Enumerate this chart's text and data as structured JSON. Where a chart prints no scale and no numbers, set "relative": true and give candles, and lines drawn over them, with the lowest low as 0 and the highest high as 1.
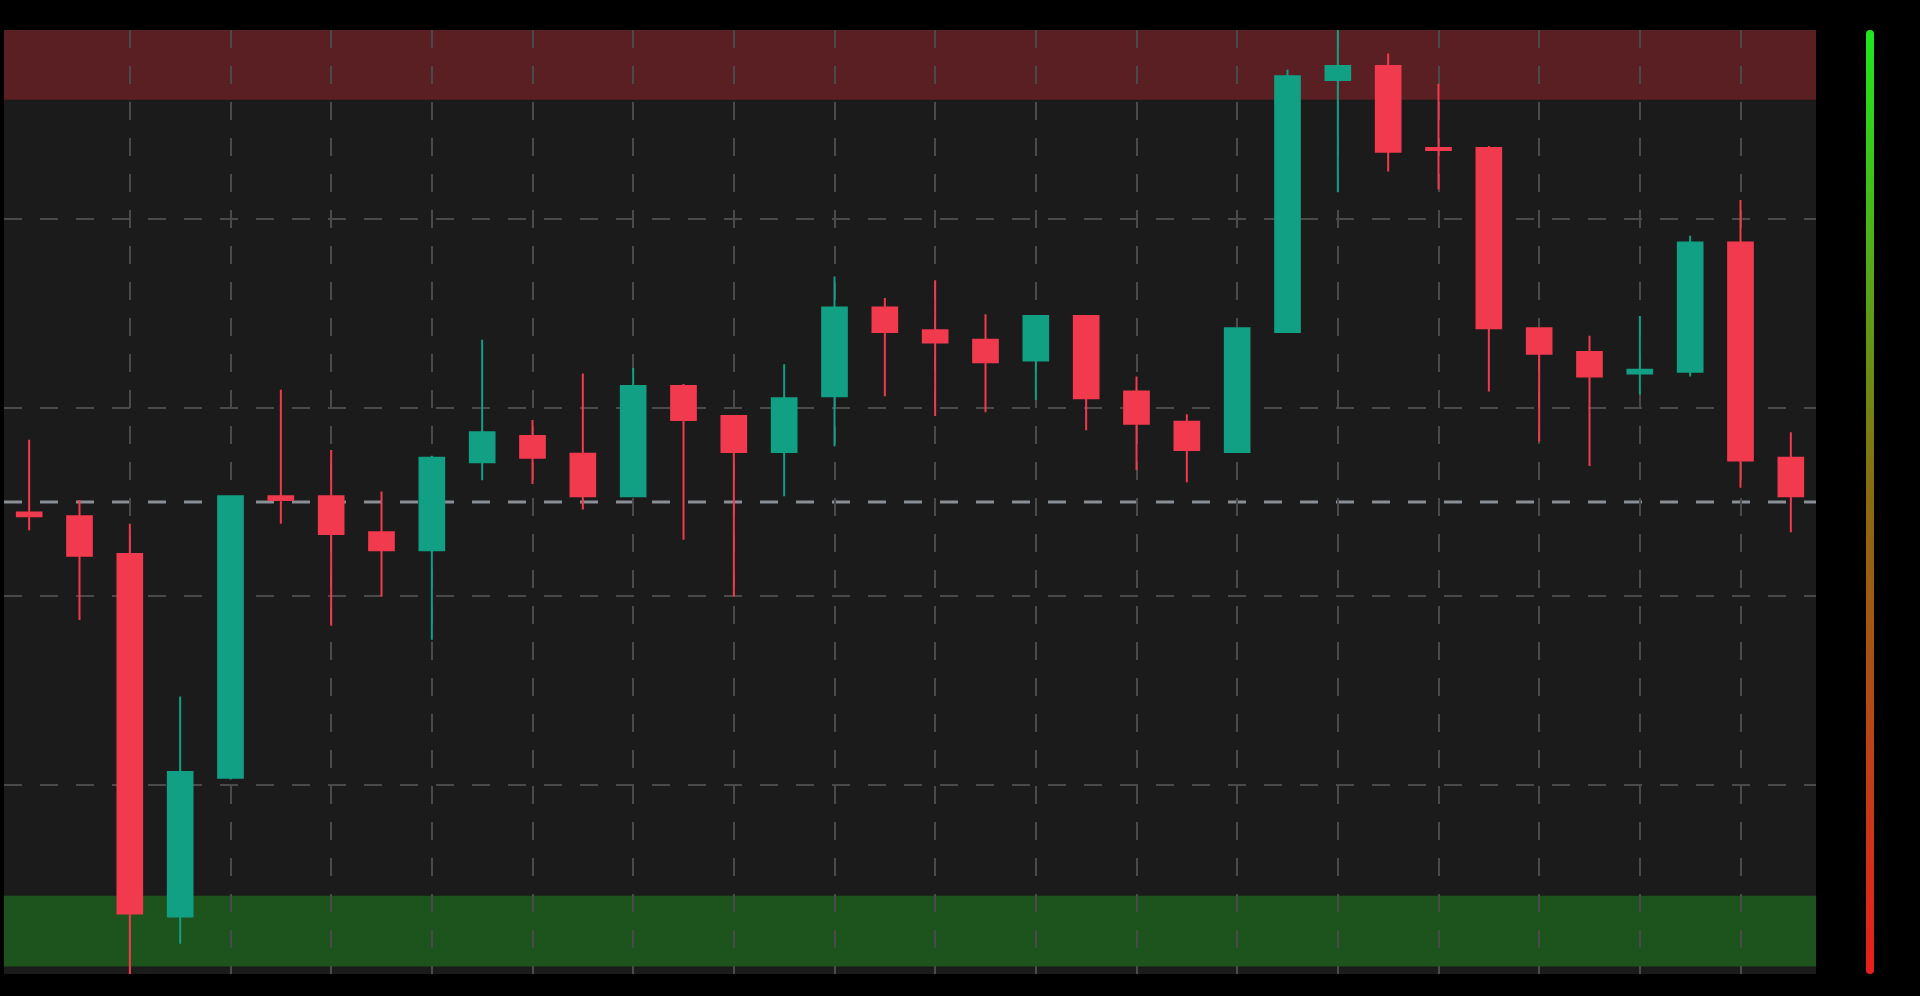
{
  "chart_data": {
    "type": "candlestick",
    "relative": true,
    "grid": true,
    "legend": false,
    "categories": [
      null,
      null,
      null,
      null,
      null,
      null,
      null,
      null,
      null,
      null,
      null,
      null,
      null,
      null,
      null,
      null,
      null,
      null,
      null,
      null,
      null,
      null,
      null,
      null,
      null,
      null,
      null,
      null,
      null,
      null,
      null,
      null,
      null,
      null,
      null,
      null
    ],
    "ohlc": [
      [
        0.489,
        0.566,
        0.47,
        0.485
      ],
      [
        0.485,
        0.502,
        0.375,
        0.443
      ],
      [
        0.445,
        0.477,
        0,
        0.064
      ],
      [
        0.061,
        0.294,
        0.032,
        0.214
      ],
      [
        0.208,
        0.506,
        0.206,
        0.506
      ],
      [
        0.506,
        0.619,
        0.477,
        0.502
      ],
      [
        0.506,
        0.555,
        0.369,
        0.466
      ],
      [
        0.468,
        0.511,
        0.4,
        0.449
      ],
      [
        0.449,
        0.549,
        0.354,
        0.547
      ],
      [
        0.542,
        0.672,
        0.523,
        0.574
      ],
      [
        0.57,
        0.587,
        0.519,
        0.547
      ],
      [
        0.551,
        0.636,
        0.492,
        0.506
      ],
      [
        0.506,
        0.642,
        0.506,
        0.623
      ],
      [
        0.623,
        0.625,
        0.46,
        0.587
      ],
      [
        0.591,
        0.591,
        0.4,
        0.553
      ],
      [
        0.553,
        0.646,
        0.506,
        0.61
      ],
      [
        0.612,
        0.739,
        0.559,
        0.706
      ],
      [
        0.706,
        0.716,
        0.612,
        0.68
      ],
      [
        0.682,
        0.735,
        0.591,
        0.669
      ],
      [
        0.672,
        0.699,
        0.595,
        0.648
      ],
      [
        0.65,
        0.697,
        0.608,
        0.697
      ],
      [
        0.697,
        0.697,
        0.576,
        0.61
      ],
      [
        0.617,
        0.633,
        0.534,
        0.583
      ],
      [
        0.585,
        0.593,
        0.521,
        0.555
      ],
      [
        0.553,
        0.684,
        0.553,
        0.684
      ],
      [
        0.68,
        0.958,
        0.68,
        0.951
      ],
      [
        0.947,
        1,
        0.828,
        0.962
      ],
      [
        0.962,
        0.975,
        0.85,
        0.871
      ],
      [
        0.875,
        0.943,
        0.831,
        0.873
      ],
      [
        0.875,
        0.877,
        0.617,
        0.684
      ],
      [
        0.684,
        0.684,
        0.564,
        0.657
      ],
      [
        0.659,
        0.676,
        0.538,
        0.633
      ],
      [
        0.636,
        0.697,
        0.614,
        0.64
      ],
      [
        0.638,
        0.782,
        0.633,
        0.775
      ],
      [
        0.775,
        0.82,
        0.515,
        0.544
      ],
      [
        0.547,
        0.574,
        0.468,
        0.506
      ]
    ],
    "bands": [
      {
        "axis": "y",
        "from": 0.926,
        "to": 1,
        "color": "#5a1f22"
      },
      {
        "axis": "y",
        "from": 0.008,
        "to": 0.083,
        "color": "#1d531d"
      }
    ],
    "ref_lines": [
      {
        "axis": "y",
        "value": 0.5,
        "color": "#8a9096",
        "line_style": "dashed"
      }
    ]
  }
}
